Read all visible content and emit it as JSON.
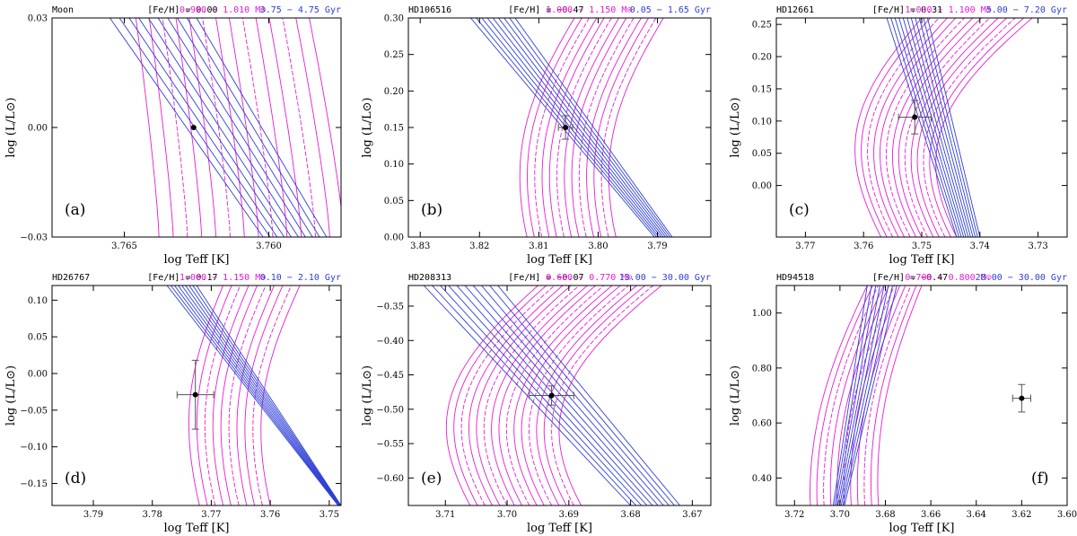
{
  "figure_description": "Six-panel HR diagram of isochrones and evolutionary tracks",
  "colors": {
    "mass_track": "#e81ad6",
    "isochrone": "#2e3fd6",
    "star": "#000000",
    "errorbar": "#555555",
    "axes": "#000000"
  },
  "chart_data": [
    {
      "type": "line",
      "star": "Moon",
      "feh_label": "[Fe/H] = 0.00",
      "mass_label": "0.990 − 1.010 M⊙",
      "age_label": "3.75 − 4.75 Gyr",
      "panel_label": "(a)",
      "xlabel": "log Teff [K]",
      "ylabel": "log (L/L⊙)",
      "xlim": [
        3.7675,
        3.7575
      ],
      "ylim": [
        -0.03,
        0.03
      ],
      "xticks": [
        3.765,
        3.76
      ],
      "xticklabels": [
        "3.765",
        "3.760"
      ],
      "yticks": [
        -0.03,
        0.0,
        0.03
      ],
      "yticklabels": [
        "−0.03",
        "0.00",
        "0.03"
      ],
      "point": {
        "x": 3.7626,
        "y": 0.0,
        "xerr": 0.0,
        "yerr": 0.0
      },
      "tracks": {
        "n": 14,
        "x_start": [
          3.7638,
          3.7574
        ],
        "x_end": [
          3.7646,
          3.7586
        ],
        "slope": 0.25,
        "curve": 0.0
      },
      "isochrones": {
        "n": 10,
        "top_x": [
          3.7655,
          3.7625
        ],
        "bottom_x": [
          3.7602,
          3.758
        ]
      }
    },
    {
      "type": "line",
      "star": "HD106516",
      "feh_label": "[Fe/H] = −0.47",
      "mass_label": "1.000 − 1.150 M⊙",
      "age_label": "0.05 − 1.65 Gyr",
      "panel_label": "(b)",
      "xlabel": "log Teff [K]",
      "ylabel": "log (L/L⊙)",
      "xlim": [
        3.832,
        3.781
      ],
      "ylim": [
        0.0,
        0.3
      ],
      "xticks": [
        3.83,
        3.82,
        3.81,
        3.8,
        3.79
      ],
      "xticklabels": [
        "3.83",
        "3.82",
        "3.81",
        "3.80",
        "3.79"
      ],
      "yticks": [
        0.0,
        0.05,
        0.1,
        0.15,
        0.2,
        0.25,
        0.3
      ],
      "yticklabels": [
        "0.00",
        "0.05",
        "0.10",
        "0.15",
        "0.20",
        "0.25",
        "0.30"
      ],
      "point": {
        "x": 3.8055,
        "y": 0.15,
        "xerr": 0.0012,
        "yerr": 0.016
      },
      "tracks": {
        "n": 13,
        "x_start": [
          3.812,
          3.797
        ],
        "x_end": [
          3.804,
          3.789
        ],
        "slope": 0.55,
        "curve": 0.003
      },
      "isochrones": {
        "n": 9,
        "top_x": [
          3.8215,
          3.814
        ],
        "bottom_x": [
          3.7905,
          3.7875
        ]
      }
    },
    {
      "type": "line",
      "star": "HD12661",
      "feh_label": "[Fe/H] = 0.31",
      "mass_label": "1.030 − 1.100 M⊙",
      "age_label": "5.00 − 7.20 Gyr",
      "panel_label": "(c)",
      "xlabel": "log Teff [K]",
      "ylabel": "log (L/L⊙)",
      "xlim": [
        3.775,
        3.725
      ],
      "ylim": [
        -0.08,
        0.26
      ],
      "xticks": [
        3.77,
        3.76,
        3.75,
        3.74,
        3.73
      ],
      "xticklabels": [
        "3.77",
        "3.76",
        "3.75",
        "3.74",
        "3.73"
      ],
      "yticks": [
        0.0,
        0.05,
        0.1,
        0.15,
        0.2,
        0.25
      ],
      "yticklabels": [
        "0.00",
        "0.05",
        "0.10",
        "0.15",
        "0.20",
        "0.25"
      ],
      "point": {
        "x": 3.7512,
        "y": 0.106,
        "xerr": 0.0028,
        "yerr": 0.026
      },
      "tracks": {
        "n": 14,
        "x_start": [
          3.757,
          3.744
        ],
        "x_end": [
          3.75,
          3.731
        ],
        "slope": 0.9,
        "curve": 0.006
      },
      "isochrones": {
        "n": 11,
        "top_x": [
          3.756,
          3.749
        ],
        "bottom_x": [
          3.744,
          3.74
        ]
      }
    },
    {
      "type": "line",
      "star": "HD26767",
      "feh_label": "[Fe/H] = 0.17",
      "mass_label": "1.060 − 1.150 M⊙",
      "age_label": "0.10 − 2.10 Gyr",
      "panel_label": "(d)",
      "xlabel": "log Teff [K]",
      "ylabel": "log (L/L⊙)",
      "xlim": [
        3.797,
        3.748
      ],
      "ylim": [
        -0.18,
        0.12
      ],
      "xticks": [
        3.79,
        3.78,
        3.77,
        3.76,
        3.75
      ],
      "xticklabels": [
        "3.79",
        "3.78",
        "3.77",
        "3.76",
        "3.75"
      ],
      "yticks": [
        -0.15,
        -0.1,
        -0.05,
        0.0,
        0.05,
        0.1
      ],
      "yticklabels": [
        "−0.15",
        "−0.10",
        "−0.05",
        "0.00",
        "0.05",
        "0.10"
      ],
      "point": {
        "x": 3.7727,
        "y": -0.029,
        "xerr": 0.0031,
        "yerr": 0.047
      },
      "tracks": {
        "n": 10,
        "x_start": [
          3.772,
          3.76
        ],
        "x_end": [
          3.768,
          3.755
        ],
        "slope": 0.45,
        "curve": 0.003
      },
      "isochrones": {
        "n": 9,
        "top_x": [
          3.7775,
          3.7725
        ],
        "bottom_x": [
          3.7485,
          3.748
        ]
      }
    },
    {
      "type": "line",
      "star": "HD208313",
      "feh_label": "[Fe/H] = −0.07",
      "mass_label": "0.680 − 0.770 M⊙",
      "age_label": "13.00 − 30.00 Gyr",
      "panel_label": "(e)",
      "xlabel": "log Teff [K]",
      "ylabel": "log (L/L⊙)",
      "xlim": [
        3.716,
        3.667
      ],
      "ylim": [
        -0.64,
        -0.32
      ],
      "xticks": [
        3.71,
        3.7,
        3.69,
        3.68,
        3.67
      ],
      "xticklabels": [
        "3.71",
        "3.70",
        "3.69",
        "3.68",
        "3.67"
      ],
      "yticks": [
        -0.6,
        -0.55,
        -0.5,
        -0.45,
        -0.4,
        -0.35
      ],
      "yticklabels": [
        "−0.60",
        "−0.55",
        "−0.50",
        "−0.45",
        "−0.40",
        "−0.35"
      ],
      "point": {
        "x": 3.6928,
        "y": -0.48,
        "xerr": 0.0036,
        "yerr": 0.014
      },
      "tracks": {
        "n": 16,
        "x_start": [
          3.706,
          3.688
        ],
        "x_end": [
          3.695,
          3.675
        ],
        "slope": 0.9,
        "curve": 0.006
      },
      "isochrones": {
        "n": 10,
        "top_x": [
          3.7135,
          3.7015
        ],
        "bottom_x": [
          3.68,
          3.672
        ]
      }
    },
    {
      "type": "line",
      "star": "HD94518",
      "feh_label": "[Fe/H] = −0.47",
      "mass_label": "0.700 − 0.800 M⊙",
      "age_label": "20.00 − 30.00 Gyr",
      "panel_label": "(f)",
      "xlabel": "log Teff [K]",
      "ylabel": "log (L/L⊙)",
      "xlim": [
        3.728,
        3.6
      ],
      "ylim": [
        0.3,
        1.1
      ],
      "xticks": [
        3.72,
        3.7,
        3.68,
        3.66,
        3.64,
        3.62,
        3.6
      ],
      "xticklabels": [
        "3.72",
        "3.70",
        "3.68",
        "3.66",
        "3.64",
        "3.62",
        "3.60"
      ],
      "yticks": [
        0.4,
        0.6,
        0.8,
        1.0
      ],
      "yticklabels": [
        "0.40",
        "0.60",
        "0.80",
        "1.00"
      ],
      "point": {
        "x": 3.62,
        "y": 0.69,
        "xerr": 0.004,
        "yerr": 0.05
      },
      "tracks": {
        "n": 11,
        "x_start": [
          3.713,
          3.683
        ],
        "x_end": [
          3.688,
          3.664
        ],
        "slope": 0.35,
        "curve": 0.004
      },
      "isochrones": {
        "n": 8,
        "top_x": [
          3.688,
          3.675
        ],
        "bottom_x": [
          3.703,
          3.698
        ]
      }
    }
  ]
}
